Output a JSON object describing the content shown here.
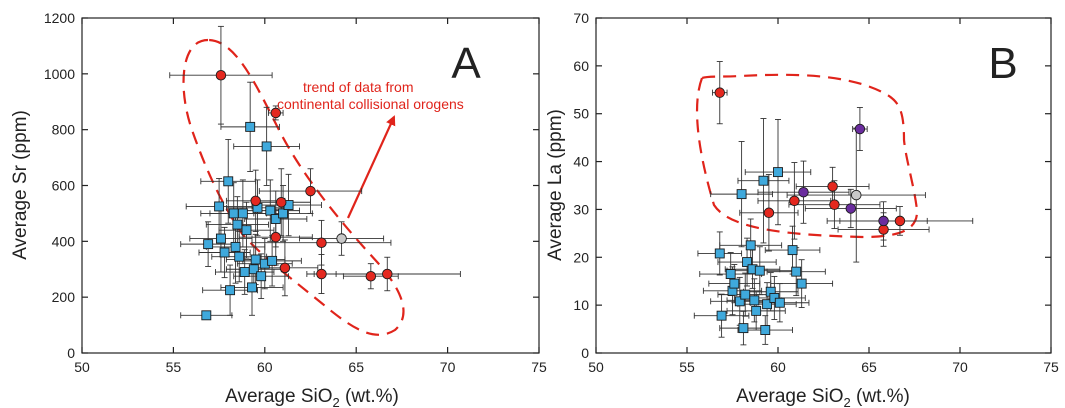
{
  "colors": {
    "square": "#3fa9dc",
    "red": "#e4281f",
    "gray": "#c8c8c8",
    "purple": "#6a2c9e",
    "dash": "#e0241b",
    "arrow": "#e0241b"
  },
  "chart_data": [
    {
      "type": "scatter",
      "panel_label": "A",
      "xlabel_main": "Average SiO",
      "xlabel_sub": "2",
      "xlabel_unit": " (wt.%)",
      "ylabel": "Average Sr (ppm)",
      "xlim": [
        50,
        75
      ],
      "ylim": [
        0,
        1200
      ],
      "xticks": [
        50,
        55,
        60,
        65,
        70,
        75
      ],
      "yticks": [
        0,
        200,
        400,
        600,
        800,
        1000,
        1200
      ],
      "annotation": [
        "trend of data from",
        "continental collisional orogens"
      ],
      "series": [
        {
          "marker": "square",
          "points": [
            {
              "x": 56.8,
              "y": 135,
              "xerr": 1.4,
              "yerr": 0
            },
            {
              "x": 56.9,
              "y": 390,
              "xerr": 1.5,
              "yerr": 80
            },
            {
              "x": 57.5,
              "y": 525,
              "xerr": 1.8,
              "yerr": 100
            },
            {
              "x": 57.6,
              "y": 410,
              "xerr": 1.7,
              "yerr": 120
            },
            {
              "x": 57.8,
              "y": 360,
              "xerr": 1.4,
              "yerr": 90
            },
            {
              "x": 58.0,
              "y": 615,
              "xerr": 1.5,
              "yerr": 150
            },
            {
              "x": 58.1,
              "y": 225,
              "xerr": 1.5,
              "yerr": 90
            },
            {
              "x": 58.3,
              "y": 500,
              "xerr": 1.8,
              "yerr": 110
            },
            {
              "x": 58.4,
              "y": 380,
              "xerr": 1.6,
              "yerr": 130
            },
            {
              "x": 58.5,
              "y": 460,
              "xerr": 1.7,
              "yerr": 100
            },
            {
              "x": 58.6,
              "y": 345,
              "xerr": 1.5,
              "yerr": 90
            },
            {
              "x": 58.8,
              "y": 500,
              "xerr": 1.8,
              "yerr": 120
            },
            {
              "x": 58.9,
              "y": 290,
              "xerr": 1.6,
              "yerr": 80
            },
            {
              "x": 59.0,
              "y": 440,
              "xerr": 1.5,
              "yerr": 100
            },
            {
              "x": 59.2,
              "y": 810,
              "xerr": 1.6,
              "yerr": 160
            },
            {
              "x": 59.3,
              "y": 235,
              "xerr": 1.7,
              "yerr": 100
            },
            {
              "x": 59.4,
              "y": 300,
              "xerr": 1.5,
              "yerr": 80
            },
            {
              "x": 59.5,
              "y": 335,
              "xerr": 1.6,
              "yerr": 90
            },
            {
              "x": 59.6,
              "y": 520,
              "xerr": 1.7,
              "yerr": 100
            },
            {
              "x": 59.8,
              "y": 275,
              "xerr": 1.5,
              "yerr": 80
            },
            {
              "x": 60.0,
              "y": 320,
              "xerr": 1.5,
              "yerr": 90
            },
            {
              "x": 60.1,
              "y": 740,
              "xerr": 1.8,
              "yerr": 140
            },
            {
              "x": 60.3,
              "y": 510,
              "xerr": 1.6,
              "yerr": 110
            },
            {
              "x": 60.6,
              "y": 480,
              "xerr": 1.7,
              "yerr": 100
            },
            {
              "x": 61.0,
              "y": 500,
              "xerr": 1.6,
              "yerr": 100
            },
            {
              "x": 61.3,
              "y": 530,
              "xerr": 1.8,
              "yerr": 110
            },
            {
              "x": 60.4,
              "y": 330,
              "xerr": 1.6,
              "yerr": 90
            }
          ]
        },
        {
          "marker": "red",
          "points": [
            {
              "x": 57.6,
              "y": 995,
              "xerr": 2.8,
              "yerr": 175
            },
            {
              "x": 59.5,
              "y": 545,
              "xerr": 1.6,
              "yerr": 110
            },
            {
              "x": 60.6,
              "y": 415,
              "xerr": 2.0,
              "yerr": 100
            },
            {
              "x": 60.6,
              "y": 860,
              "xerr": 0.4,
              "yerr": 25
            },
            {
              "x": 60.9,
              "y": 540,
              "xerr": 1.6,
              "yerr": 120
            },
            {
              "x": 61.1,
              "y": 305,
              "xerr": 1.8,
              "yerr": 100
            },
            {
              "x": 62.5,
              "y": 580,
              "xerr": 2.8,
              "yerr": 80
            },
            {
              "x": 63.1,
              "y": 283,
              "xerr": 0.8,
              "yerr": 70
            },
            {
              "x": 63.1,
              "y": 395,
              "xerr": 3.8,
              "yerr": 80
            },
            {
              "x": 65.8,
              "y": 275,
              "xerr": 1.5,
              "yerr": 45
            },
            {
              "x": 66.7,
              "y": 283,
              "xerr": 4.0,
              "yerr": 60
            }
          ]
        },
        {
          "marker": "gray",
          "points": [
            {
              "x": 64.2,
              "y": 410,
              "xerr": 2.3,
              "yerr": 60
            }
          ]
        }
      ]
    },
    {
      "type": "scatter",
      "panel_label": "B",
      "xlabel_main": "Average SiO",
      "xlabel_sub": "2",
      "xlabel_unit": " (wt.%)",
      "ylabel": "Average La (ppm)",
      "xlim": [
        50,
        75
      ],
      "ylim": [
        0,
        70
      ],
      "xticks": [
        50,
        55,
        60,
        65,
        70,
        75
      ],
      "yticks": [
        0,
        10,
        20,
        30,
        40,
        50,
        60,
        70
      ],
      "series": [
        {
          "marker": "square",
          "points": [
            {
              "x": 56.8,
              "y": 20.8,
              "xerr": 1.2,
              "yerr": 4.5
            },
            {
              "x": 56.9,
              "y": 7.8,
              "xerr": 1.5,
              "yerr": 4.5
            },
            {
              "x": 57.4,
              "y": 16.5,
              "xerr": 1.7,
              "yerr": 4.5
            },
            {
              "x": 57.5,
              "y": 13.0,
              "xerr": 1.6,
              "yerr": 5.0
            },
            {
              "x": 57.6,
              "y": 14.5,
              "xerr": 1.4,
              "yerr": 4.0
            },
            {
              "x": 57.9,
              "y": 10.8,
              "xerr": 1.6,
              "yerr": 5.0
            },
            {
              "x": 58.0,
              "y": 33.2,
              "xerr": 1.7,
              "yerr": 11.0
            },
            {
              "x": 58.1,
              "y": 5.2,
              "xerr": 1.3,
              "yerr": 3.5
            },
            {
              "x": 58.2,
              "y": 12.2,
              "xerr": 1.5,
              "yerr": 4.5
            },
            {
              "x": 58.3,
              "y": 19.0,
              "xerr": 1.6,
              "yerr": 5.0
            },
            {
              "x": 58.5,
              "y": 22.5,
              "xerr": 1.7,
              "yerr": 5.5
            },
            {
              "x": 58.6,
              "y": 17.5,
              "xerr": 1.5,
              "yerr": 4.0
            },
            {
              "x": 58.7,
              "y": 11.0,
              "xerr": 1.5,
              "yerr": 4.5
            },
            {
              "x": 58.8,
              "y": 8.8,
              "xerr": 1.6,
              "yerr": 4.0
            },
            {
              "x": 59.0,
              "y": 17.2,
              "xerr": 1.8,
              "yerr": 5.0
            },
            {
              "x": 59.2,
              "y": 36.0,
              "xerr": 1.4,
              "yerr": 13.0
            },
            {
              "x": 59.3,
              "y": 4.8,
              "xerr": 1.5,
              "yerr": 3.0
            },
            {
              "x": 59.4,
              "y": 10.2,
              "xerr": 1.6,
              "yerr": 4.5
            },
            {
              "x": 59.6,
              "y": 12.8,
              "xerr": 1.5,
              "yerr": 4.0
            },
            {
              "x": 59.8,
              "y": 11.5,
              "xerr": 1.7,
              "yerr": 4.5
            },
            {
              "x": 60.0,
              "y": 37.8,
              "xerr": 1.8,
              "yerr": 11.0
            },
            {
              "x": 60.1,
              "y": 10.5,
              "xerr": 1.6,
              "yerr": 4.0
            },
            {
              "x": 60.8,
              "y": 21.5,
              "xerr": 1.5,
              "yerr": 5.0
            },
            {
              "x": 61.0,
              "y": 17.0,
              "xerr": 1.6,
              "yerr": 5.0
            },
            {
              "x": 61.3,
              "y": 14.5,
              "xerr": 1.7,
              "yerr": 5.0
            }
          ]
        },
        {
          "marker": "red",
          "points": [
            {
              "x": 56.8,
              "y": 54.4,
              "xerr": 0.4,
              "yerr": 6.5
            },
            {
              "x": 59.5,
              "y": 29.3,
              "xerr": 1.6,
              "yerr": 8.0
            },
            {
              "x": 60.9,
              "y": 31.8,
              "xerr": 2.0,
              "yerr": 8.0
            },
            {
              "x": 63.0,
              "y": 34.8,
              "xerr": 2.0,
              "yerr": 4.0
            },
            {
              "x": 63.1,
              "y": 31.0,
              "xerr": 2.5,
              "yerr": 5.0
            },
            {
              "x": 65.8,
              "y": 25.8,
              "xerr": 2.5,
              "yerr": 3.5
            },
            {
              "x": 66.7,
              "y": 27.6,
              "xerr": 4.0,
              "yerr": 3.0
            }
          ]
        },
        {
          "marker": "purple",
          "points": [
            {
              "x": 61.4,
              "y": 33.6,
              "xerr": 2.5,
              "yerr": 6.5
            },
            {
              "x": 64.0,
              "y": 30.2,
              "xerr": 2.5,
              "yerr": 4.0
            },
            {
              "x": 64.5,
              "y": 46.8,
              "xerr": 0.4,
              "yerr": 4.5
            },
            {
              "x": 65.8,
              "y": 27.6,
              "xerr": 2.4,
              "yerr": 4.0
            }
          ]
        },
        {
          "marker": "gray",
          "points": [
            {
              "x": 64.3,
              "y": 33.0,
              "xerr": 3.8,
              "yerr": 14.0
            }
          ]
        }
      ]
    }
  ]
}
